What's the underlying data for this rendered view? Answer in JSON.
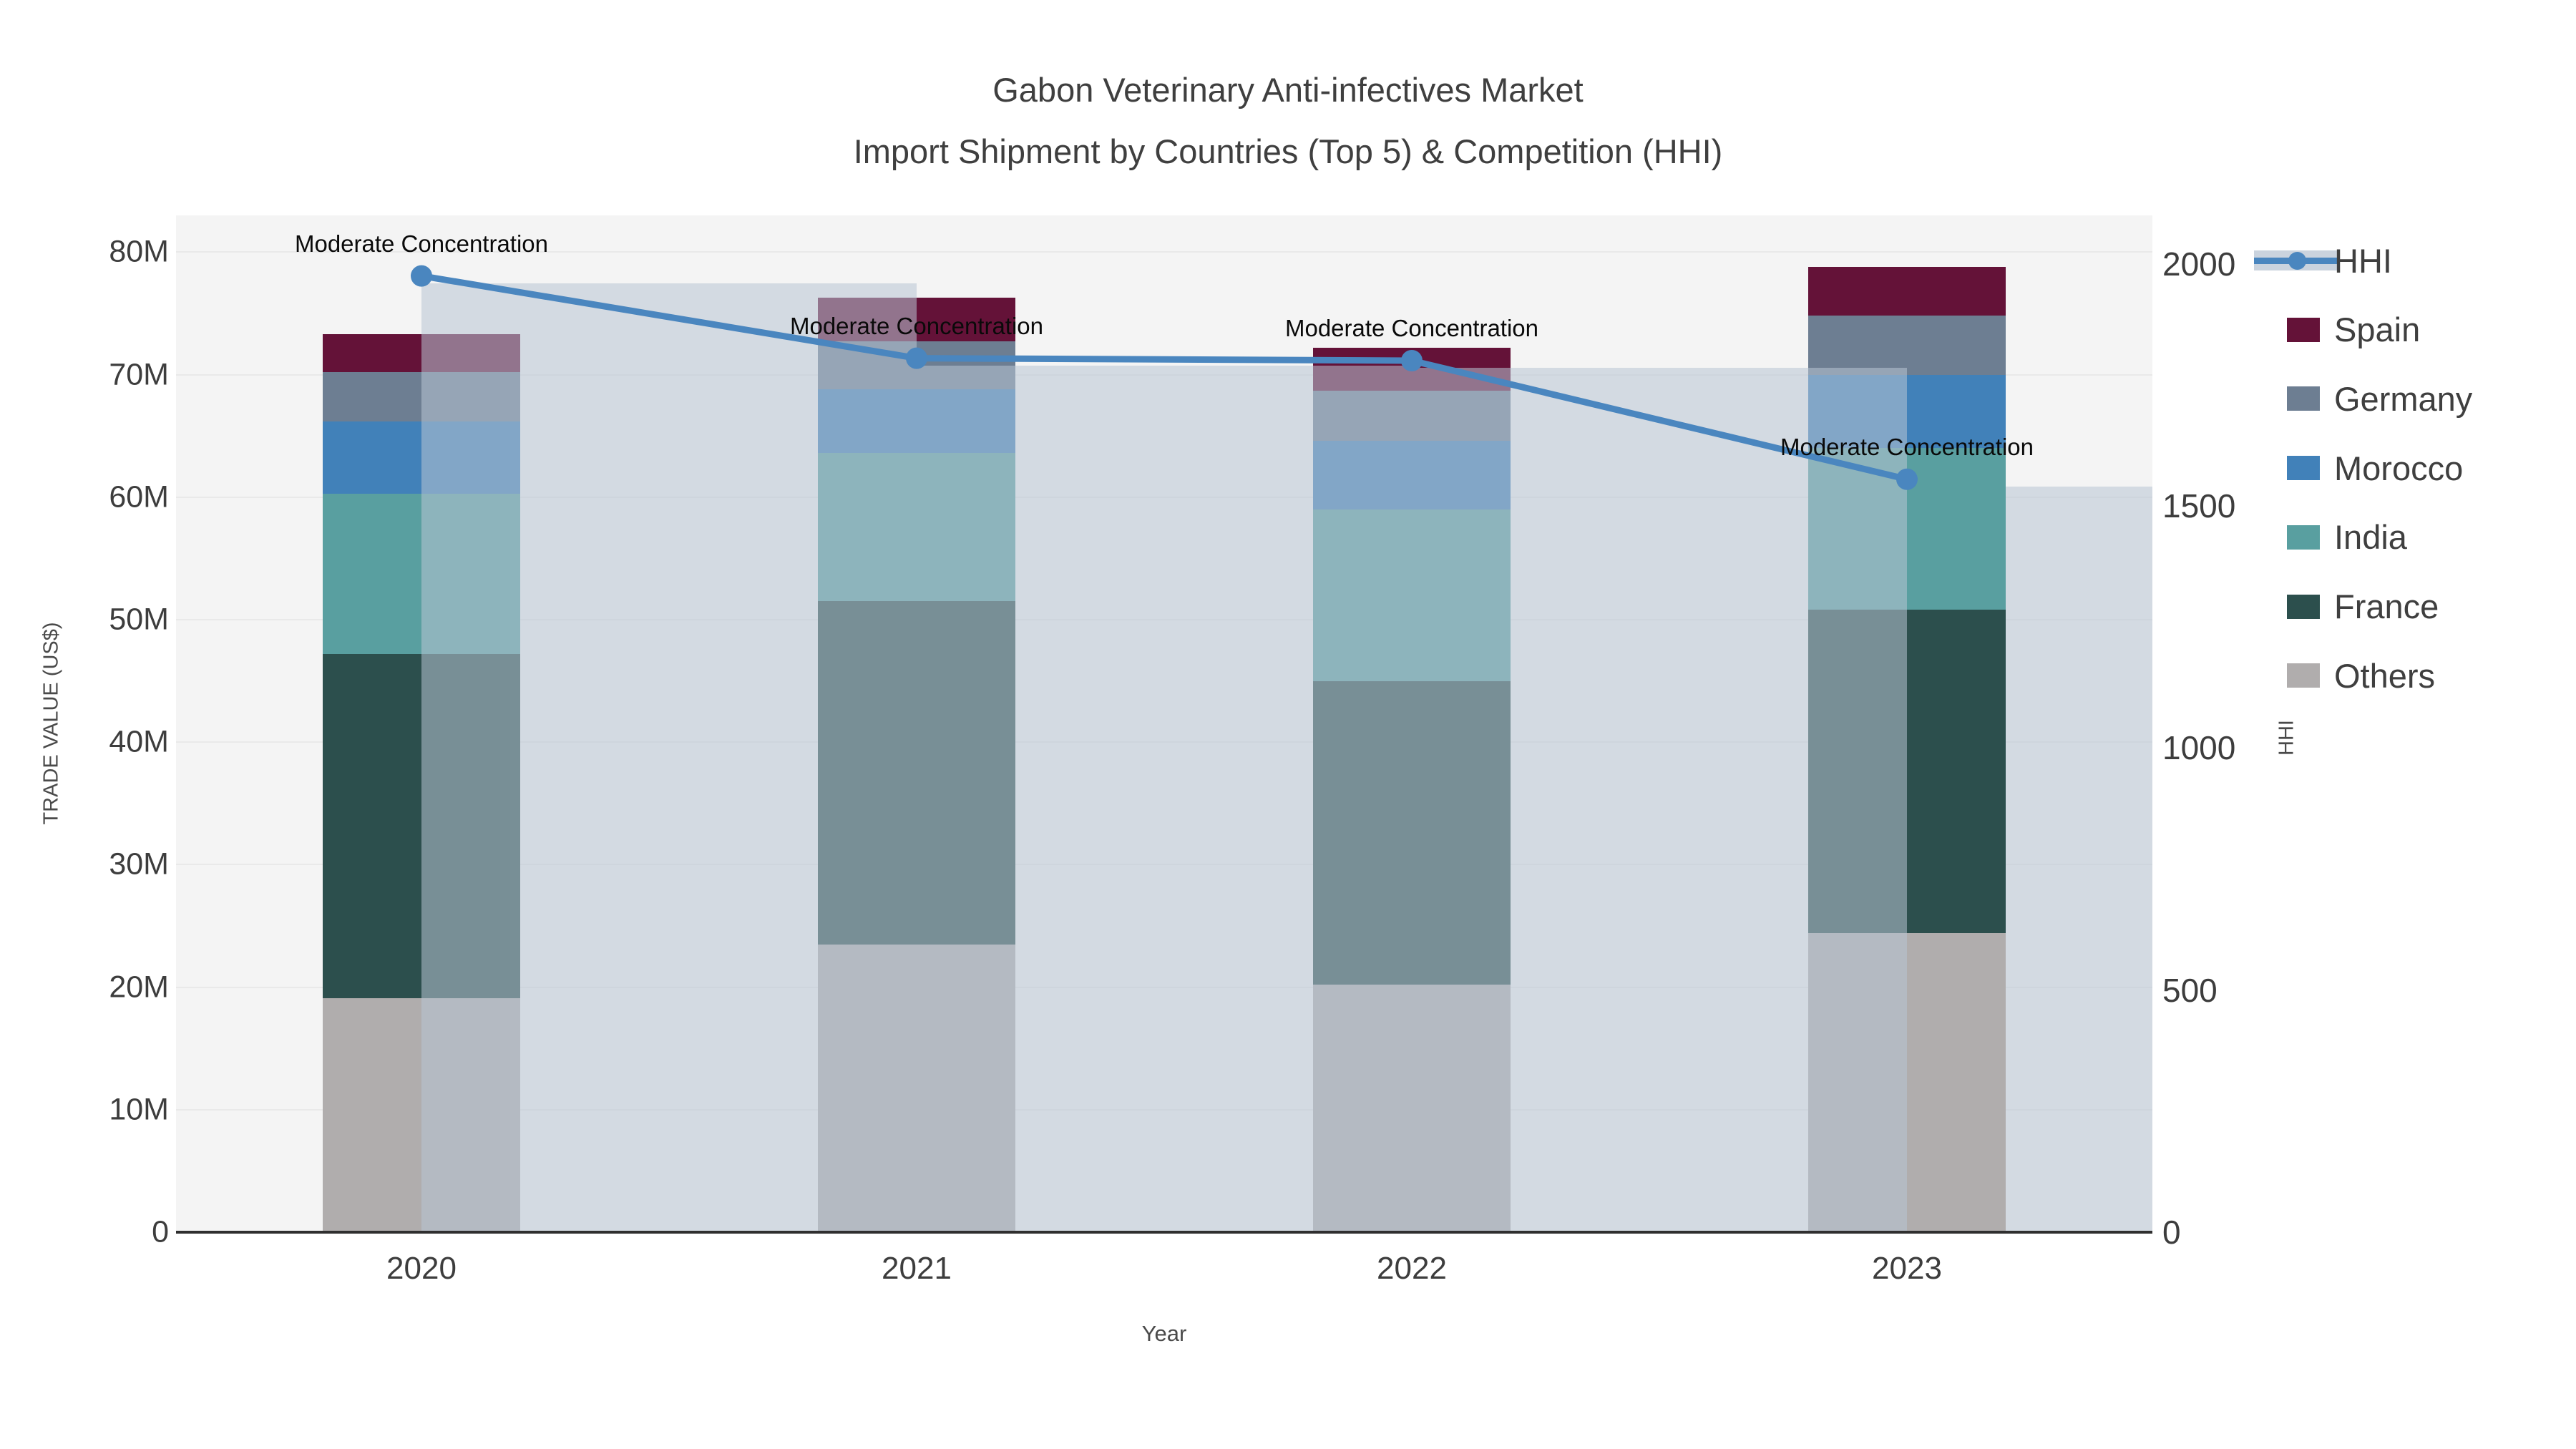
{
  "title": {
    "line1": "Gabon Veterinary Anti-infectives Market",
    "line2": "Import Shipment by Countries (Top 5) & Competition (HHI)"
  },
  "axes": {
    "x_title": "Year",
    "y_left_title": "TRADE VALUE (US$)",
    "y_right_title": "HHI",
    "y_left_tick_labels": [
      "0",
      "10M",
      "20M",
      "30M",
      "40M",
      "50M",
      "60M",
      "70M",
      "80M"
    ],
    "y_left_tick_values": [
      0,
      10,
      20,
      30,
      40,
      50,
      60,
      70,
      80
    ],
    "y_right_tick_labels": [
      "0",
      "500",
      "1000",
      "1500",
      "2000"
    ],
    "y_right_tick_values": [
      0,
      500,
      1000,
      1500,
      2000
    ]
  },
  "annotation_text": "Moderate Concentration",
  "colors": {
    "hhi_line": "#4a86bf",
    "hhi_band": "rgba(184,196,211,0.55)",
    "plot_background": "#f4f4f4",
    "axis_line": "#2f2f2f"
  },
  "chart_data": {
    "type": "bar",
    "subtype": "stacked-bar-with-line",
    "categories": [
      "2020",
      "2021",
      "2022",
      "2023"
    ],
    "value_unit": "million US$",
    "series": [
      {
        "name": "Others",
        "color": "#b0adad",
        "values": [
          19.1,
          23.5,
          20.2,
          24.4
        ]
      },
      {
        "name": "France",
        "color": "#2c4f4d",
        "values": [
          28.1,
          28.0,
          24.8,
          26.4
        ]
      },
      {
        "name": "India",
        "color": "#599fa0",
        "values": [
          13.1,
          12.1,
          14.0,
          13.2
        ]
      },
      {
        "name": "Morocco",
        "color": "#4181b9",
        "values": [
          5.9,
          5.2,
          5.6,
          6.0
        ]
      },
      {
        "name": "Germany",
        "color": "#6d7e92",
        "values": [
          4.0,
          3.9,
          4.1,
          4.8
        ]
      },
      {
        "name": "Spain",
        "color": "#641238",
        "values": [
          3.1,
          3.6,
          3.5,
          4.0
        ]
      }
    ],
    "bar_totals": [
      73.3,
      76.3,
      72.2,
      78.8
    ],
    "line_series": {
      "name": "HHI",
      "axis": "right",
      "values": [
        1975,
        1805,
        1800,
        1555
      ]
    },
    "annotations_per_point": [
      "Moderate Concentration",
      "Moderate Concentration",
      "Moderate Concentration",
      "Moderate Concentration"
    ],
    "title": "Gabon Veterinary Anti-infectives Market — Import Shipment by Countries (Top 5) & Competition (HHI)",
    "xlabel": "Year",
    "ylabel_left": "TRADE VALUE (US$)",
    "ylabel_right": "HHI",
    "y_left_range": [
      0,
      83
    ],
    "y_right_range": [
      0,
      2100
    ],
    "grid": true,
    "legend_position": "right",
    "legend_order": [
      "HHI",
      "Spain",
      "Germany",
      "Morocco",
      "India",
      "France",
      "Others"
    ]
  }
}
